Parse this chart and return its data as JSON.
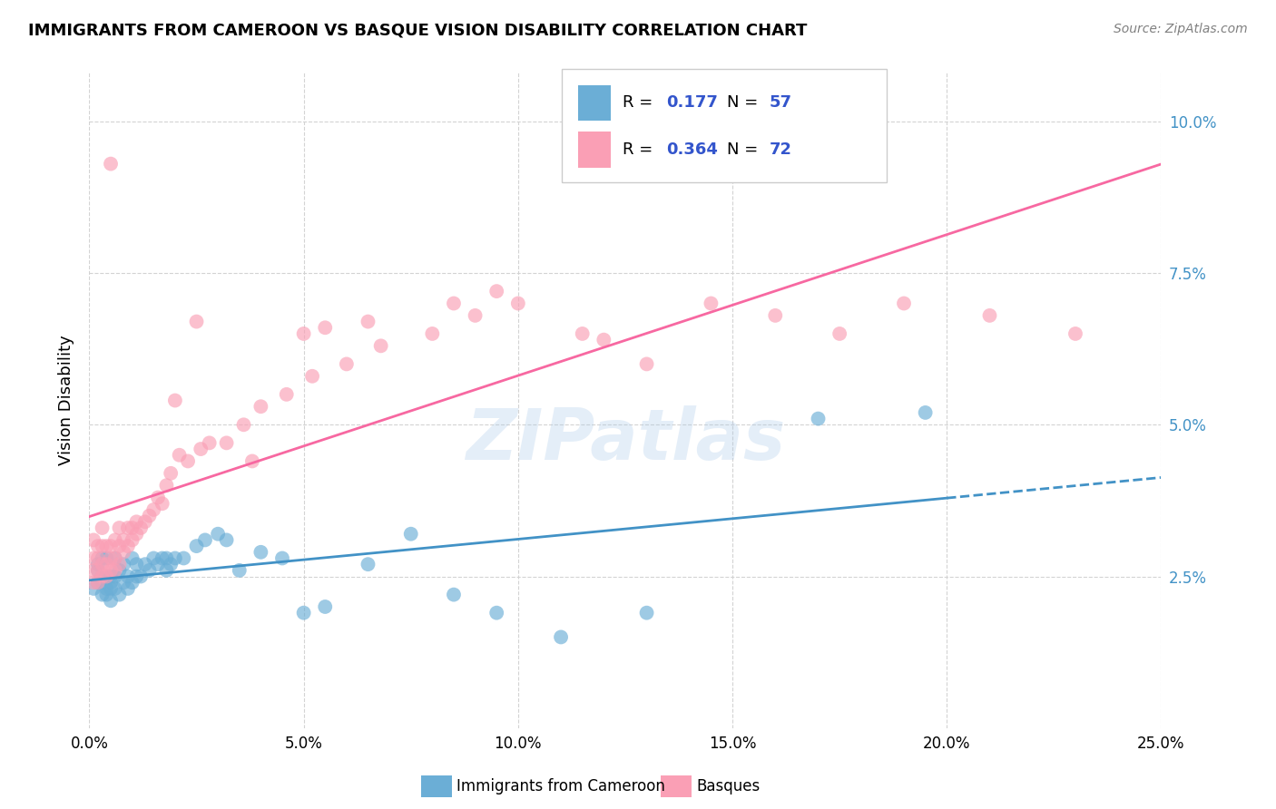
{
  "title": "IMMIGRANTS FROM CAMEROON VS BASQUE VISION DISABILITY CORRELATION CHART",
  "source": "Source: ZipAtlas.com",
  "xlabel_ticks": [
    "0.0%",
    "5.0%",
    "10.0%",
    "15.0%",
    "20.0%",
    "25.0%"
  ],
  "xlabel_vals": [
    0.0,
    0.05,
    0.1,
    0.15,
    0.2,
    0.25
  ],
  "ylabel": "Vision Disability",
  "ylabel_ticks": [
    "2.5%",
    "5.0%",
    "7.5%",
    "10.0%"
  ],
  "ylabel_vals": [
    0.025,
    0.05,
    0.075,
    0.1
  ],
  "xlim": [
    0.0,
    0.25
  ],
  "ylim": [
    0.0,
    0.108
  ],
  "blue_R": 0.177,
  "blue_N": 57,
  "pink_R": 0.364,
  "pink_N": 72,
  "blue_color": "#6baed6",
  "pink_color": "#fa9fb5",
  "blue_line_color": "#4292c6",
  "pink_line_color": "#f768a1",
  "blue_label": "Immigrants from Cameroon",
  "pink_label": "Basques",
  "legend_val_color": "#3355cc",
  "watermark": "ZIPatlas",
  "blue_x": [
    0.001,
    0.002,
    0.002,
    0.002,
    0.003,
    0.003,
    0.003,
    0.003,
    0.004,
    0.004,
    0.004,
    0.004,
    0.005,
    0.005,
    0.005,
    0.005,
    0.006,
    0.006,
    0.006,
    0.007,
    0.007,
    0.008,
    0.008,
    0.009,
    0.009,
    0.01,
    0.01,
    0.011,
    0.011,
    0.012,
    0.013,
    0.014,
    0.015,
    0.016,
    0.017,
    0.018,
    0.018,
    0.019,
    0.02,
    0.022,
    0.025,
    0.027,
    0.03,
    0.032,
    0.035,
    0.04,
    0.045,
    0.05,
    0.055,
    0.065,
    0.075,
    0.085,
    0.095,
    0.11,
    0.13,
    0.17,
    0.195
  ],
  "blue_y": [
    0.023,
    0.024,
    0.026,
    0.027,
    0.022,
    0.024,
    0.025,
    0.028,
    0.022,
    0.023,
    0.025,
    0.028,
    0.021,
    0.023,
    0.024,
    0.025,
    0.023,
    0.025,
    0.028,
    0.022,
    0.026,
    0.024,
    0.027,
    0.023,
    0.025,
    0.024,
    0.028,
    0.025,
    0.027,
    0.025,
    0.027,
    0.026,
    0.028,
    0.027,
    0.028,
    0.026,
    0.028,
    0.027,
    0.028,
    0.028,
    0.03,
    0.031,
    0.032,
    0.031,
    0.026,
    0.029,
    0.028,
    0.019,
    0.02,
    0.027,
    0.032,
    0.022,
    0.019,
    0.015,
    0.019,
    0.051,
    0.052
  ],
  "pink_x": [
    0.001,
    0.001,
    0.001,
    0.001,
    0.002,
    0.002,
    0.002,
    0.002,
    0.003,
    0.003,
    0.003,
    0.003,
    0.004,
    0.004,
    0.004,
    0.005,
    0.005,
    0.005,
    0.006,
    0.006,
    0.006,
    0.007,
    0.007,
    0.007,
    0.008,
    0.008,
    0.009,
    0.009,
    0.01,
    0.01,
    0.011,
    0.011,
    0.012,
    0.013,
    0.014,
    0.015,
    0.016,
    0.017,
    0.018,
    0.019,
    0.021,
    0.023,
    0.026,
    0.028,
    0.032,
    0.036,
    0.04,
    0.046,
    0.052,
    0.06,
    0.068,
    0.08,
    0.09,
    0.1,
    0.115,
    0.13,
    0.145,
    0.16,
    0.175,
    0.19,
    0.21,
    0.23,
    0.005,
    0.02,
    0.025,
    0.038,
    0.05,
    0.055,
    0.065,
    0.085,
    0.095,
    0.12
  ],
  "pink_y": [
    0.024,
    0.026,
    0.028,
    0.031,
    0.024,
    0.026,
    0.028,
    0.03,
    0.025,
    0.027,
    0.03,
    0.033,
    0.025,
    0.027,
    0.03,
    0.026,
    0.028,
    0.03,
    0.026,
    0.028,
    0.031,
    0.027,
    0.03,
    0.033,
    0.029,
    0.031,
    0.03,
    0.033,
    0.031,
    0.033,
    0.032,
    0.034,
    0.033,
    0.034,
    0.035,
    0.036,
    0.038,
    0.037,
    0.04,
    0.042,
    0.045,
    0.044,
    0.046,
    0.047,
    0.047,
    0.05,
    0.053,
    0.055,
    0.058,
    0.06,
    0.063,
    0.065,
    0.068,
    0.07,
    0.065,
    0.06,
    0.07,
    0.068,
    0.065,
    0.07,
    0.068,
    0.065,
    0.093,
    0.054,
    0.067,
    0.044,
    0.065,
    0.066,
    0.067,
    0.07,
    0.072,
    0.064
  ]
}
